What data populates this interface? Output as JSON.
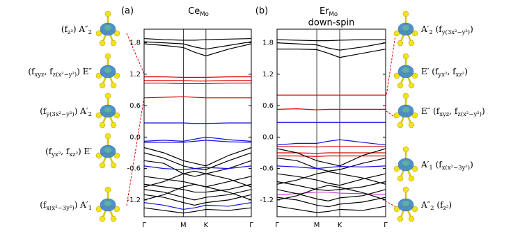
{
  "chart_data": [
    {
      "type": "line",
      "panel_label": "(a)",
      "title": [
        {
          "t": "Ce"
        },
        {
          "t": "Mo",
          "sub": true
        }
      ],
      "x": [
        0,
        0.289,
        0.577,
        0.743,
        0.91,
        1.243,
        1.577
      ],
      "xlim": [
        0,
        1.577
      ],
      "xticks": [
        {
          "value": 0,
          "label": "Γ"
        },
        {
          "value": 0.577,
          "label": "M"
        },
        {
          "value": 0.91,
          "label": "K"
        },
        {
          "value": 1.577,
          "label": "Γ"
        }
      ],
      "ylim": [
        -1.52,
        2.06
      ],
      "yticks": [
        -1.2,
        -0.6,
        {
          "value": 0,
          "label": "0.0"
        },
        0.6,
        1.2,
        1.8
      ],
      "grid": "x",
      "series": [
        {
          "color": "#000000",
          "values": [
            1.88,
            1.86,
            1.85,
            1.85,
            1.86,
            1.87,
            1.88
          ]
        },
        {
          "color": "#000000",
          "values": [
            1.82,
            1.8,
            1.78,
            1.72,
            1.68,
            1.75,
            1.82
          ]
        },
        {
          "color": "#000000",
          "values": [
            1.78,
            1.75,
            1.71,
            1.62,
            1.55,
            1.68,
            1.78
          ]
        },
        {
          "color": "#e00000",
          "values": [
            1.15,
            1.15,
            1.14,
            1.14,
            1.14,
            1.15,
            1.15
          ]
        },
        {
          "color": "#e00000",
          "values": [
            1.08,
            1.08,
            1.08,
            1.07,
            1.07,
            1.08,
            1.08
          ]
        },
        {
          "color": "#e00000",
          "values": [
            1.03,
            1.03,
            1.02,
            1.02,
            1.02,
            1.03,
            1.03
          ]
        },
        {
          "color": "#e00000",
          "values": [
            0.75,
            0.76,
            0.77,
            0.76,
            0.75,
            0.75,
            0.75
          ]
        },
        {
          "color": "#1010e0",
          "values": [
            0.27,
            0.27,
            0.27,
            0.26,
            0.26,
            0.27,
            0.27
          ]
        },
        {
          "color": "#1010e0",
          "values": [
            -0.08,
            -0.06,
            -0.08,
            -0.04,
            0.0,
            -0.05,
            -0.08
          ]
        },
        {
          "color": "#1010e0",
          "values": [
            -0.1,
            -0.1,
            -0.1,
            -0.08,
            -0.06,
            -0.09,
            -0.1
          ]
        },
        {
          "color": "#000000",
          "values": [
            -0.2,
            -0.3,
            -0.45,
            -0.5,
            -0.55,
            -0.35,
            -0.2
          ]
        },
        {
          "color": "#000000",
          "values": [
            -0.3,
            -0.4,
            -0.55,
            -0.6,
            -0.62,
            -0.45,
            -0.3
          ]
        },
        {
          "color": "#000000",
          "values": [
            -0.45,
            -0.5,
            -0.7,
            -0.75,
            -0.7,
            -0.6,
            -0.45
          ]
        },
        {
          "color": "#1010e0",
          "values": [
            -0.55,
            -0.6,
            -0.62,
            -0.6,
            -0.58,
            -0.6,
            -0.55
          ]
        },
        {
          "color": "#000000",
          "values": [
            -0.75,
            -0.8,
            -0.85,
            -0.9,
            -0.95,
            -0.85,
            -0.75
          ]
        },
        {
          "color": "#000000",
          "values": [
            -0.95,
            -0.85,
            -0.7,
            -0.65,
            -0.7,
            -0.8,
            -0.95
          ]
        },
        {
          "color": "#000000",
          "values": [
            -0.9,
            -0.95,
            -1.0,
            -1.05,
            -1.05,
            -1.0,
            -0.9
          ]
        },
        {
          "color": "#000000",
          "values": [
            -1.2,
            -1.1,
            -0.95,
            -0.9,
            -0.95,
            -1.05,
            -1.2
          ]
        },
        {
          "color": "#000000",
          "values": [
            -1.0,
            -1.05,
            -1.15,
            -1.2,
            -1.15,
            -1.1,
            -1.0
          ]
        },
        {
          "color": "#000000",
          "values": [
            -1.1,
            -1.15,
            -1.25,
            -1.3,
            -1.25,
            -1.2,
            -1.1
          ]
        },
        {
          "color": "#1010e0",
          "values": [
            -1.25,
            -1.3,
            -1.38,
            -1.35,
            -1.3,
            -1.32,
            -1.25
          ]
        },
        {
          "color": "#000000",
          "values": [
            -1.35,
            -1.4,
            -1.45,
            -1.42,
            -1.38,
            -1.4,
            -1.35
          ]
        }
      ]
    },
    {
      "type": "line",
      "panel_label": "(b)",
      "title": [
        {
          "t": "Er"
        },
        {
          "t": "Mo",
          "sub": true
        }
      ],
      "subtitle": "down-spin",
      "x": [
        0,
        0.289,
        0.577,
        0.743,
        0.91,
        1.243,
        1.577
      ],
      "xlim": [
        0,
        1.577
      ],
      "xticks": [
        {
          "value": 0,
          "label": "Γ"
        },
        {
          "value": 0.577,
          "label": "M"
        },
        {
          "value": 0.91,
          "label": "K"
        },
        {
          "value": 1.577,
          "label": "Γ"
        }
      ],
      "ylim": [
        -1.52,
        2.06
      ],
      "yticks": [
        -1.2,
        -0.6,
        {
          "value": 0,
          "label": "0.0"
        },
        0.6,
        1.2,
        1.8
      ],
      "grid": "x",
      "series": [
        {
          "color": "#000000",
          "values": [
            1.86,
            1.85,
            1.84,
            1.84,
            1.85,
            1.86,
            1.86
          ]
        },
        {
          "color": "#000000",
          "values": [
            1.8,
            1.78,
            1.76,
            1.7,
            1.66,
            1.72,
            1.8
          ]
        },
        {
          "color": "#000000",
          "values": [
            1.68,
            1.68,
            1.67,
            1.6,
            1.52,
            1.6,
            1.68
          ]
        },
        {
          "color": "#e00000",
          "values": [
            0.8,
            0.8,
            0.8,
            0.8,
            0.8,
            0.8,
            0.8
          ]
        },
        {
          "color": "#e00000",
          "values": [
            0.53,
            0.54,
            0.52,
            0.53,
            0.53,
            0.53,
            0.53
          ]
        },
        {
          "color": "#1010e0",
          "values": [
            0.28,
            0.28,
            0.28,
            0.28,
            0.28,
            0.28,
            0.28
          ]
        },
        {
          "color": "#1010e0",
          "values": [
            -0.15,
            -0.12,
            -0.12,
            -0.08,
            -0.05,
            -0.1,
            -0.15
          ]
        },
        {
          "color": "#e00000",
          "values": [
            -0.18,
            -0.18,
            -0.19,
            -0.18,
            -0.18,
            -0.18,
            -0.18
          ]
        },
        {
          "color": "#e00000",
          "values": [
            -0.3,
            -0.3,
            -0.31,
            -0.3,
            -0.3,
            -0.3,
            -0.3
          ]
        },
        {
          "color": "#e00000",
          "values": [
            -0.36,
            -0.36,
            -0.37,
            -0.36,
            -0.36,
            -0.36,
            -0.36
          ]
        },
        {
          "color": "#000000",
          "values": [
            -0.22,
            -0.3,
            -0.45,
            -0.5,
            -0.55,
            -0.35,
            -0.22
          ]
        },
        {
          "color": "#000000",
          "values": [
            -0.4,
            -0.45,
            -0.6,
            -0.65,
            -0.62,
            -0.5,
            -0.4
          ]
        },
        {
          "color": "#1010e0",
          "values": [
            -0.55,
            -0.57,
            -0.6,
            -0.58,
            -0.56,
            -0.57,
            -0.55
          ]
        },
        {
          "color": "#000000",
          "values": [
            -0.7,
            -0.75,
            -0.82,
            -0.88,
            -0.92,
            -0.8,
            -0.7
          ]
        },
        {
          "color": "#000000",
          "values": [
            -0.9,
            -0.82,
            -0.7,
            -0.66,
            -0.7,
            -0.78,
            -0.9
          ]
        },
        {
          "color": "#000000",
          "values": [
            -0.85,
            -0.92,
            -1.0,
            -1.02,
            -1.0,
            -0.95,
            -0.85
          ]
        },
        {
          "color": "#cc33cc",
          "values": [
            -1.1,
            -1.08,
            -1.05,
            -1.05,
            -1.07,
            -1.08,
            -1.1
          ]
        },
        {
          "color": "#000000",
          "values": [
            -1.2,
            -1.12,
            -0.98,
            -0.92,
            -0.96,
            -1.06,
            -1.2
          ]
        },
        {
          "color": "#000000",
          "values": [
            -1.0,
            -1.08,
            -1.18,
            -1.22,
            -1.16,
            -1.12,
            -1.0
          ]
        },
        {
          "color": "#000000",
          "values": [
            -1.15,
            -1.2,
            -1.3,
            -1.33,
            -1.28,
            -1.24,
            -1.15
          ]
        },
        {
          "color": "#000000",
          "values": [
            -1.32,
            -1.38,
            -1.44,
            -1.42,
            -1.38,
            -1.4,
            -1.32
          ]
        }
      ]
    }
  ],
  "orbital_labels": {
    "left": [
      [
        {
          "t": "(f"
        },
        {
          "t": "z³",
          "sub": true
        },
        {
          "t": ") A″"
        },
        {
          "t": "2",
          "sub": true
        }
      ],
      [
        {
          "t": "(f"
        },
        {
          "t": "xyz",
          "sub": true
        },
        {
          "t": ", f"
        },
        {
          "t": "z(x²−y²)",
          "sub": true
        },
        {
          "t": ") E″"
        }
      ],
      [
        {
          "t": "(f"
        },
        {
          "t": "y(3x²−y²)",
          "sub": true
        },
        {
          "t": ") A′"
        },
        {
          "t": "2",
          "sub": true
        }
      ],
      [
        {
          "t": "(f"
        },
        {
          "t": "yx²",
          "sub": true
        },
        {
          "t": ", f"
        },
        {
          "t": "xz²",
          "sub": true
        },
        {
          "t": ") E′"
        }
      ],
      [
        {
          "t": "(f"
        },
        {
          "t": "x(x²−3y²)",
          "sub": true
        },
        {
          "t": ") A′"
        },
        {
          "t": "1",
          "sub": true
        }
      ]
    ],
    "right": [
      [
        {
          "t": "A′"
        },
        {
          "t": "2",
          "sub": true
        },
        {
          "t": " (f"
        },
        {
          "t": "y(3x²−y²)",
          "sub": true
        },
        {
          "t": ")"
        }
      ],
      [
        {
          "t": "E′ (f"
        },
        {
          "t": "yx²",
          "sub": true
        },
        {
          "t": ", f"
        },
        {
          "t": "xz²",
          "sub": true
        },
        {
          "t": ")"
        }
      ],
      [
        {
          "t": "E″ (f"
        },
        {
          "t": "xyz",
          "sub": true
        },
        {
          "t": ", f"
        },
        {
          "t": "z(x²−y²)",
          "sub": true
        },
        {
          "t": ")"
        }
      ],
      [
        {
          "t": "A′"
        },
        {
          "t": "1",
          "sub": true
        },
        {
          "t": " (f"
        },
        {
          "t": "x(x²−3y²)",
          "sub": true
        },
        {
          "t": ")"
        }
      ],
      [
        {
          "t": "A″"
        },
        {
          "t": "2",
          "sub": true
        },
        {
          "t": " (f"
        },
        {
          "t": "z³",
          "sub": true
        },
        {
          "t": ")"
        }
      ]
    ]
  }
}
